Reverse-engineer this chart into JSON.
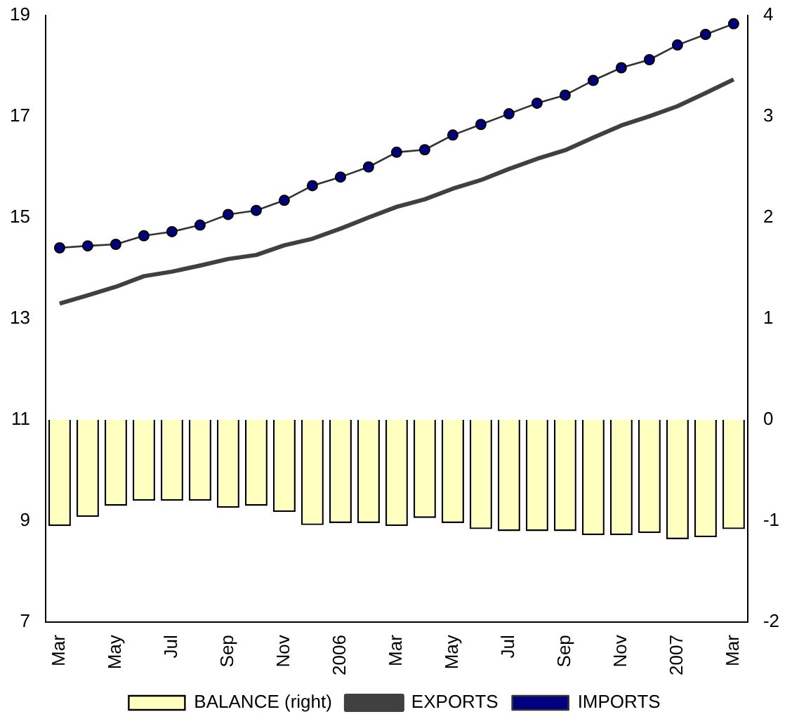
{
  "chart_data": {
    "type": "line",
    "categories": [
      "Mar",
      null,
      "May",
      null,
      "Jul",
      null,
      "Sep",
      null,
      "Nov",
      null,
      "2006",
      null,
      "Mar",
      null,
      "May",
      null,
      "Jul",
      null,
      "Sep",
      null,
      "Nov",
      null,
      "2007",
      null,
      "Mar"
    ],
    "series": [
      {
        "name": "BALANCE (right)",
        "type": "bar",
        "axis": "y2",
        "color": "#ffffc0",
        "values": [
          -1.05,
          -0.96,
          -0.85,
          -0.8,
          -0.8,
          -0.8,
          -0.87,
          -0.85,
          -0.91,
          -1.04,
          -1.02,
          -1.02,
          -1.05,
          -0.97,
          -1.02,
          -1.08,
          -1.1,
          -1.1,
          -1.1,
          -1.14,
          -1.14,
          -1.12,
          -1.18,
          -1.16,
          -1.08
        ]
      },
      {
        "name": "EXPORTS",
        "color": "#404040",
        "marker": "none",
        "values": [
          13.3,
          13.46,
          13.63,
          13.84,
          13.93,
          14.05,
          14.18,
          14.26,
          14.45,
          14.58,
          14.78,
          15.0,
          15.21,
          15.36,
          15.57,
          15.74,
          15.96,
          16.16,
          16.33,
          16.58,
          16.82,
          17.0,
          17.2,
          17.46,
          17.73
        ]
      },
      {
        "name": "IMPORTS",
        "color": "#000080",
        "marker": "circle",
        "values": [
          14.4,
          14.44,
          14.47,
          14.64,
          14.72,
          14.85,
          15.06,
          15.14,
          15.34,
          15.63,
          15.8,
          16.0,
          16.29,
          16.34,
          16.63,
          16.84,
          17.05,
          17.26,
          17.42,
          17.71,
          17.96,
          18.12,
          18.41,
          18.62,
          18.83
        ]
      }
    ],
    "ylim": [
      7,
      19
    ],
    "yticks": [
      7,
      9,
      11,
      13,
      15,
      17,
      19
    ],
    "y2lim": [
      -2,
      4
    ],
    "y2ticks": [
      -2,
      -1,
      0,
      1,
      2,
      3,
      4
    ],
    "grid": false,
    "legend": "bottom"
  }
}
